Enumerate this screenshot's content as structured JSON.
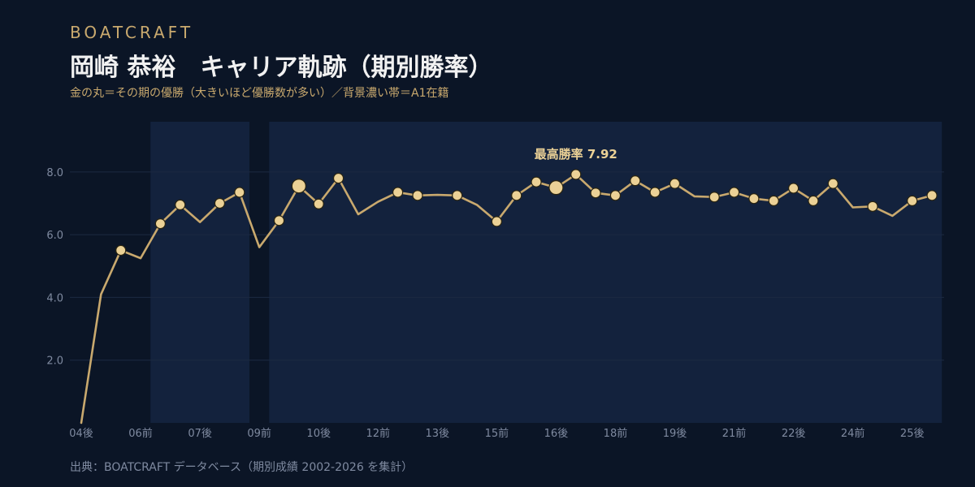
{
  "header": {
    "brand": "BOATCRAFT",
    "title": "岡崎 恭裕　キャリア軌跡（期別勝率）",
    "subtitle": "金の丸＝その期の優勝（大きいほど優勝数が多い）／背景濃い帯＝A1在籍"
  },
  "footer": {
    "source": "出典：BOATCRAFT データベース（期別成績 2002-2026 を集計）"
  },
  "colors": {
    "background": "#0b1526",
    "band": "#13223d",
    "line": "#c9a96e",
    "marker_fill": "#ebd196",
    "marker_stroke": "#2a2410",
    "grid": "#1c2a42",
    "tick_label": "#7f8aa0",
    "annotation": "#ebd196"
  },
  "chart_data": {
    "type": "line",
    "title": "",
    "xlabel": "",
    "ylabel": "",
    "ylim": [
      0,
      9.6
    ],
    "yticks": [
      2.0,
      4.0,
      6.0,
      8.0
    ],
    "ytick_labels": [
      "2.0",
      "4.0",
      "6.0",
      "8.0"
    ],
    "grid": true,
    "x_tick_labels": [
      {
        "i": 0,
        "label": "04後"
      },
      {
        "i": 3,
        "label": "06前"
      },
      {
        "i": 6,
        "label": "07後"
      },
      {
        "i": 9,
        "label": "09前"
      },
      {
        "i": 12,
        "label": "10後"
      },
      {
        "i": 15,
        "label": "12前"
      },
      {
        "i": 18,
        "label": "13後"
      },
      {
        "i": 21,
        "label": "15前"
      },
      {
        "i": 24,
        "label": "16後"
      },
      {
        "i": 27,
        "label": "18前"
      },
      {
        "i": 30,
        "label": "19後"
      },
      {
        "i": 33,
        "label": "21前"
      },
      {
        "i": 36,
        "label": "22後"
      },
      {
        "i": 39,
        "label": "24前"
      },
      {
        "i": 42,
        "label": "25後"
      }
    ],
    "series": [
      {
        "values": [
          0.0,
          4.1,
          5.5,
          5.25,
          6.35,
          6.95,
          6.4,
          7.0,
          7.35,
          5.6,
          6.45,
          7.55,
          6.98,
          7.8,
          6.65,
          7.05,
          7.35,
          7.25,
          7.27,
          7.25,
          6.95,
          6.42,
          7.25,
          7.68,
          7.5,
          7.92,
          7.33,
          7.25,
          7.72,
          7.35,
          7.63,
          7.22,
          7.2,
          7.35,
          7.15,
          7.08,
          7.48,
          7.08,
          7.63,
          6.87,
          6.9,
          6.6,
          7.08,
          7.25
        ],
        "wins": [
          0,
          0,
          1,
          0,
          1,
          1,
          0,
          1,
          1,
          0,
          1,
          2,
          1,
          1,
          0,
          0,
          1,
          1,
          0,
          1,
          0,
          1,
          1,
          1,
          2,
          1,
          1,
          1,
          1,
          1,
          1,
          0,
          1,
          1,
          1,
          1,
          1,
          1,
          1,
          0,
          1,
          0,
          1,
          1
        ]
      }
    ],
    "a1_bands": [
      [
        3.5,
        8.5
      ],
      [
        9.5,
        43.5
      ]
    ],
    "annotations": [
      {
        "i": 25,
        "text": "最高勝率 7.92"
      }
    ]
  }
}
